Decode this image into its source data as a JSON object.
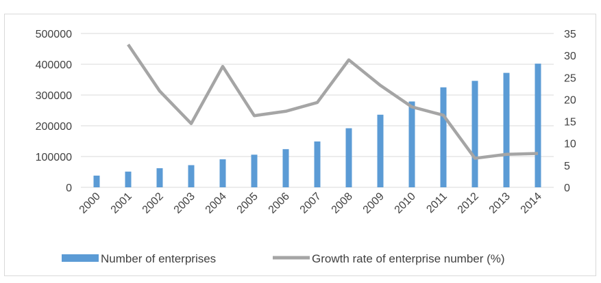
{
  "chart_data": {
    "type": "bar+line",
    "title": "",
    "categories": [
      "2000",
      "2001",
      "2002",
      "2003",
      "2004",
      "2005",
      "2006",
      "2007",
      "2008",
      "2009",
      "2010",
      "2011",
      "2012",
      "2013",
      "2014"
    ],
    "series": [
      {
        "name": "Number of enterprises",
        "type": "bar",
        "axis": "left",
        "color": "#5b9bd5",
        "values": [
          38000,
          51000,
          62000,
          72000,
          91000,
          106000,
          124000,
          149000,
          192000,
          236000,
          279000,
          325000,
          346000,
          372000,
          402000
        ]
      },
      {
        "name": "Growth rate of enterprise number (%)",
        "type": "line",
        "axis": "right",
        "color": "#a5a5a5",
        "values": [
          null,
          32.5,
          21.9,
          14.5,
          27.5,
          16.3,
          17.3,
          19.3,
          29.0,
          23.2,
          18.3,
          16.4,
          6.6,
          7.5,
          7.7
        ]
      }
    ],
    "y_left": {
      "min": 0,
      "max": 500000,
      "ticks": [
        "0",
        "100000",
        "200000",
        "300000",
        "400000",
        "500000"
      ]
    },
    "y_right": {
      "min": 0,
      "max": 35,
      "ticks": [
        "0",
        "5",
        "10",
        "15",
        "20",
        "25",
        "30",
        "35"
      ]
    },
    "grid": true,
    "legend_position": "bottom"
  }
}
